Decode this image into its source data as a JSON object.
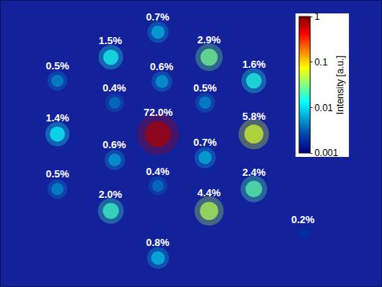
{
  "chart_data": {
    "type": "scatter",
    "x": [
      200,
      140,
      265,
      72,
      322,
      205,
      145,
      260,
      72,
      200,
      322,
      145,
      260,
      72,
      200,
      322,
      140,
      265,
      385,
      200
    ],
    "y": [
      40,
      72,
      72,
      102,
      102,
      103,
      130,
      130,
      170,
      170,
      170,
      203,
      200,
      240,
      236,
      240,
      268,
      268,
      296,
      328
    ],
    "values": [
      0.7,
      1.5,
      2.9,
      0.5,
      1.6,
      0.6,
      0.4,
      0.5,
      1.4,
      72.0,
      5.8,
      0.6,
      0.7,
      0.5,
      0.4,
      2.4,
      2.0,
      4.4,
      0.2,
      0.8
    ],
    "value_labels": [
      "0.7%",
      "1.5%",
      "2.9%",
      "0.5%",
      "1.6%",
      "0.6%",
      "0.4%",
      "0.5%",
      "1.4%",
      "72.0%",
      "5.8%",
      "0.6%",
      "0.7%",
      "0.5%",
      "0.4%",
      "2.4%",
      "2.0%",
      "4.4%",
      "0.2%",
      "0.8%"
    ],
    "data_labels": true,
    "xlim": [
      0,
      484
    ],
    "ylim": [
      364,
      0
    ],
    "tick_labels": false,
    "colorbar": {
      "title": "Intensity [a.u.]",
      "range": [
        0.001,
        1
      ],
      "ticks": [
        0.001,
        0.01,
        0.1,
        1
      ],
      "log": true
    }
  }
}
